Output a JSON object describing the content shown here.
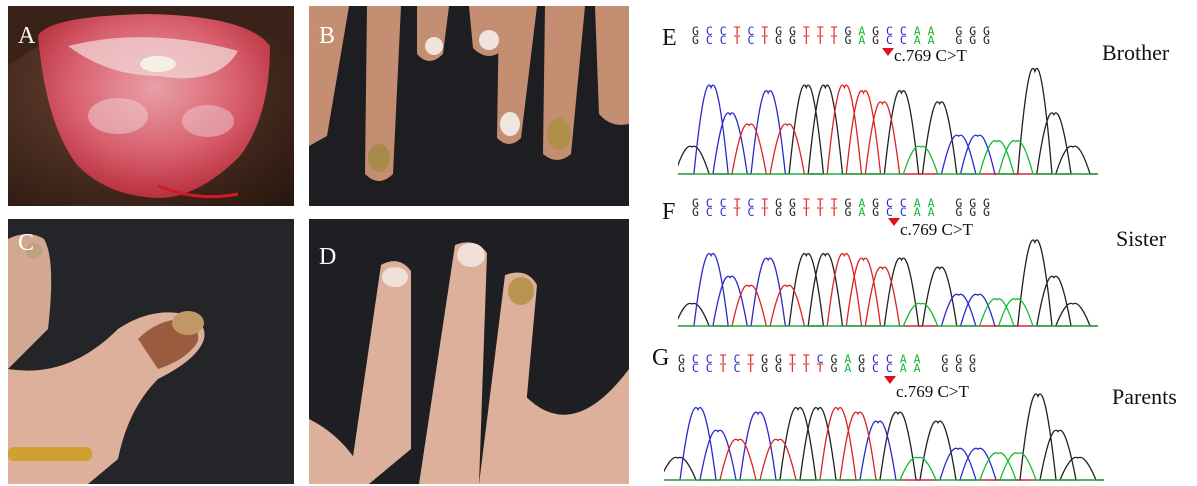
{
  "figure": {
    "panels": [
      {
        "letter": "A",
        "subject": "tongue"
      },
      {
        "letter": "B",
        "subject": "fingernails"
      },
      {
        "letter": "C",
        "subject": "thumb nail"
      },
      {
        "letter": "D",
        "subject": "fingers"
      }
    ],
    "sequence_panels": [
      {
        "letter": "E",
        "relation": "Brother",
        "mutation": "c.769 C>T",
        "row1": "GCCTCTGGTTTGAGCCAA GGG",
        "row2": "GCCTCTGGTTTGAGCCAA GGG"
      },
      {
        "letter": "F",
        "relation": "Sister",
        "mutation": "c.769 C>T",
        "row1": "GCCTCTGGTTTGAGCCAA GGG",
        "row2": "GCCTCTGGTTTGAGCCAA GGG"
      },
      {
        "letter": "G",
        "relation": "Parents",
        "mutation": "c.769 C>T",
        "row1": "GCCTCTGGTTCGAGCCAA GGG",
        "row2": "GCCTCTGGTTTGAGCCAA GGG"
      }
    ],
    "base_colors": {
      "G": "#222222",
      "C": "#2a2acc",
      "T": "#dd2222",
      "A": "#11bb33"
    },
    "arrow_color": "#e0101a"
  }
}
